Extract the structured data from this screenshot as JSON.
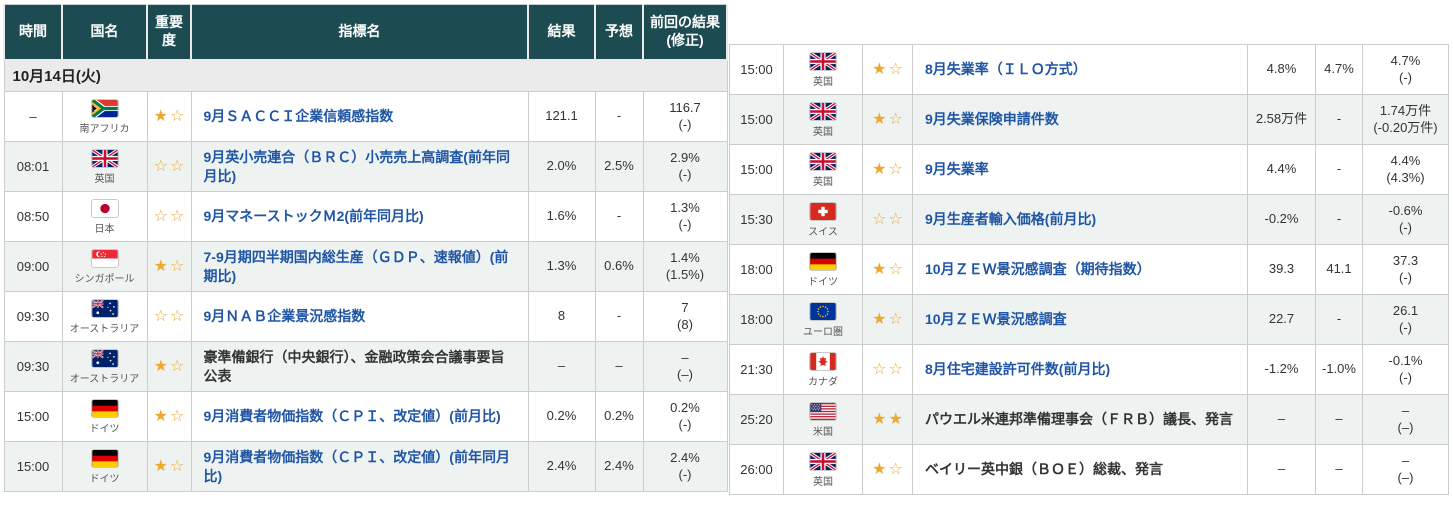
{
  "colors": {
    "header_bg": "#1d4b52",
    "link_blue": "#1f55a4",
    "row_alt_bg": "#eef3f2",
    "date_row_bg": "#ebebeb",
    "border": "#cccccc",
    "star_gold": "#efa72e",
    "text": "#333333"
  },
  "header": {
    "columns": [
      "時間",
      "国名",
      "重要度",
      "指標名",
      "結果",
      "予想",
      "前回の結果\n(修正)"
    ]
  },
  "date_label": "10月14日(火)",
  "left_table": {
    "rows": [
      {
        "time": "–",
        "country": "南アフリカ",
        "flag": "za",
        "importance": 1,
        "indicator": "9月ＳＡＣＣＩ企業信頼感指数",
        "is_link": true,
        "result": "121.1",
        "forecast": "-",
        "previous": "116.7",
        "previous_revised": "(-)"
      },
      {
        "time": "08:01",
        "country": "英国",
        "flag": "gb",
        "importance": 0,
        "indicator": "9月英小売連合（ＢＲＣ）小売売上高調査(前年同月比)",
        "is_link": true,
        "result": "2.0%",
        "forecast": "2.5%",
        "previous": "2.9%",
        "previous_revised": "(-)"
      },
      {
        "time": "08:50",
        "country": "日本",
        "flag": "jp",
        "importance": 0,
        "indicator": "9月マネーストックＭ2(前年同月比)",
        "is_link": true,
        "result": "1.6%",
        "forecast": "-",
        "previous": "1.3%",
        "previous_revised": "(-)"
      },
      {
        "time": "09:00",
        "country": "シンガポール",
        "flag": "sg",
        "importance": 1,
        "indicator": "7-9月期四半期国内総生産（ＧＤＰ、速報値）(前期比)",
        "is_link": true,
        "result": "1.3%",
        "forecast": "0.6%",
        "previous": "1.4%",
        "previous_revised": "(1.5%)"
      },
      {
        "time": "09:30",
        "country": "オーストラリア",
        "flag": "au",
        "importance": 0,
        "indicator": "9月ＮＡＢ企業景況感指数",
        "is_link": true,
        "result": "8",
        "forecast": "-",
        "previous": "7",
        "previous_revised": "(8)"
      },
      {
        "time": "09:30",
        "country": "オーストラリア",
        "flag": "au",
        "importance": 1,
        "indicator": "豪準備銀行（中央銀行）、金融政策会合議事要旨公表",
        "is_link": false,
        "result": "–",
        "forecast": "–",
        "previous": "–",
        "previous_revised": "(–)"
      },
      {
        "time": "15:00",
        "country": "ドイツ",
        "flag": "de",
        "importance": 1,
        "indicator": "9月消費者物価指数（ＣＰＩ、改定値）(前月比)",
        "is_link": true,
        "result": "0.2%",
        "forecast": "0.2%",
        "previous": "0.2%",
        "previous_revised": "(-)"
      },
      {
        "time": "15:00",
        "country": "ドイツ",
        "flag": "de",
        "importance": 1,
        "indicator": "9月消費者物価指数（ＣＰＩ、改定値）(前年同月比)",
        "is_link": true,
        "result": "2.4%",
        "forecast": "2.4%",
        "previous": "2.4%",
        "previous_revised": "(-)"
      }
    ]
  },
  "right_table": {
    "rows": [
      {
        "time": "15:00",
        "country": "英国",
        "flag": "gb",
        "importance": 1,
        "indicator": "8月失業率（ＩＬＯ方式）",
        "is_link": true,
        "result": "4.8%",
        "forecast": "4.7%",
        "previous": "4.7%",
        "previous_revised": "(-)"
      },
      {
        "time": "15:00",
        "country": "英国",
        "flag": "gb",
        "importance": 1,
        "indicator": "9月失業保険申請件数",
        "is_link": true,
        "result": "2.58万件",
        "forecast": "-",
        "previous": "1.74万件",
        "previous_revised": "(-0.20万件)"
      },
      {
        "time": "15:00",
        "country": "英国",
        "flag": "gb",
        "importance": 1,
        "indicator": "9月失業率",
        "is_link": true,
        "result": "4.4%",
        "forecast": "-",
        "previous": "4.4%",
        "previous_revised": "(4.3%)"
      },
      {
        "time": "15:30",
        "country": "スイス",
        "flag": "ch",
        "importance": 0,
        "indicator": "9月生産者輸入価格(前月比)",
        "is_link": true,
        "result": "-0.2%",
        "forecast": "-",
        "previous": "-0.6%",
        "previous_revised": "(-)"
      },
      {
        "time": "18:00",
        "country": "ドイツ",
        "flag": "de",
        "importance": 1,
        "indicator": "10月ＺＥＷ景況感調査（期待指数）",
        "is_link": true,
        "result": "39.3",
        "forecast": "41.1",
        "previous": "37.3",
        "previous_revised": "(-)"
      },
      {
        "time": "18:00",
        "country": "ユーロ圏",
        "flag": "eu",
        "importance": 1,
        "indicator": "10月ＺＥＷ景況感調査",
        "is_link": true,
        "result": "22.7",
        "forecast": "-",
        "previous": "26.1",
        "previous_revised": "(-)"
      },
      {
        "time": "21:30",
        "country": "カナダ",
        "flag": "ca",
        "importance": 0,
        "indicator": "8月住宅建設許可件数(前月比)",
        "is_link": true,
        "result": "-1.2%",
        "forecast": "-1.0%",
        "previous": "-0.1%",
        "previous_revised": "(-)"
      },
      {
        "time": "25:20",
        "country": "米国",
        "flag": "us",
        "importance": 2,
        "indicator": "パウエル米連邦準備理事会（ＦＲＢ）議長、発言",
        "is_link": false,
        "result": "–",
        "forecast": "–",
        "previous": "–",
        "previous_revised": "(–)"
      },
      {
        "time": "26:00",
        "country": "英国",
        "flag": "gb",
        "importance": 1,
        "indicator": "ベイリー英中銀（ＢＯＥ）総裁、発言",
        "is_link": false,
        "result": "–",
        "forecast": "–",
        "previous": "–",
        "previous_revised": "(–)"
      }
    ]
  }
}
